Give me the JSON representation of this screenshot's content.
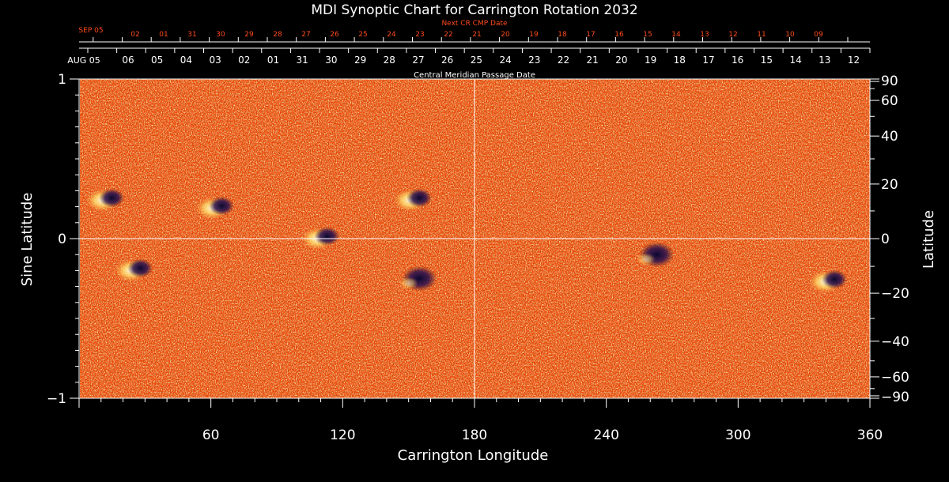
{
  "chart_data": {
    "type": "heatmap",
    "title": "MDI Synoptic Chart for Carrington Rotation 2032",
    "xlabel": "Carrington Longitude",
    "ylabel_left": "Sine Latitude",
    "ylabel_right": "Latitude",
    "xlim": [
      0,
      360
    ],
    "ylim": [
      -1,
      1
    ],
    "x_ticks": [
      "60",
      "120",
      "180",
      "240",
      "300",
      "360"
    ],
    "x_tick_values": [
      60,
      120,
      180,
      240,
      300,
      360
    ],
    "y_left_ticks": [
      {
        "label": "1",
        "value": 1
      },
      {
        "label": "0",
        "value": 0
      },
      {
        "label": "−1",
        "value": -1
      }
    ],
    "y_right_ticks": [
      {
        "label": "90",
        "lat": 90
      },
      {
        "label": "60",
        "lat": 60
      },
      {
        "label": "40",
        "lat": 40
      },
      {
        "label": "20",
        "lat": 20
      },
      {
        "label": "0",
        "lat": 0
      },
      {
        "label": "−20",
        "lat": -20
      },
      {
        "label": "−40",
        "lat": -40
      },
      {
        "label": "−60",
        "lat": -60
      },
      {
        "label": "−90",
        "lat": -90
      }
    ],
    "cmp_axis_title": "Central Meridian Passage Date",
    "cmp_start_label": "AUG 05",
    "cmp_dates": [
      "06",
      "05",
      "04",
      "03",
      "02",
      "01",
      "31",
      "30",
      "29",
      "28",
      "27",
      "26",
      "25",
      "24",
      "23",
      "22",
      "21",
      "20",
      "19",
      "18",
      "17",
      "16",
      "15",
      "14",
      "13",
      "12"
    ],
    "next_cmp_axis_title": "Next CR CMP Date",
    "next_cmp_start_label": "SEP 05",
    "next_cmp_dates": [
      "02",
      "01",
      "31",
      "30",
      "29",
      "28",
      "27",
      "26",
      "25",
      "24",
      "23",
      "22",
      "21",
      "20",
      "19",
      "18",
      "17",
      "16",
      "15",
      "14",
      "13",
      "12",
      "11",
      "10",
      "09"
    ],
    "background_color": "#ff4a0a",
    "positive_polarity_color": "#fff4c0",
    "negative_polarity_color": "#1a1040",
    "grid_color": "#ffffff",
    "next_cmp_color": "#ff4a1a",
    "active_regions": [
      {
        "lon": 12,
        "sinlat": 0.24,
        "polarity": "mixed"
      },
      {
        "lon": 62,
        "sinlat": 0.19,
        "polarity": "mixed"
      },
      {
        "lon": 25,
        "sinlat": -0.2,
        "polarity": "mixed"
      },
      {
        "lon": 110,
        "sinlat": 0.0,
        "polarity": "mixed"
      },
      {
        "lon": 152,
        "sinlat": 0.24,
        "polarity": "mixed"
      },
      {
        "lon": 155,
        "sinlat": -0.25,
        "polarity": "negative"
      },
      {
        "lon": 263,
        "sinlat": -0.1,
        "polarity": "negative"
      },
      {
        "lon": 341,
        "sinlat": -0.27,
        "polarity": "mixed"
      }
    ]
  }
}
